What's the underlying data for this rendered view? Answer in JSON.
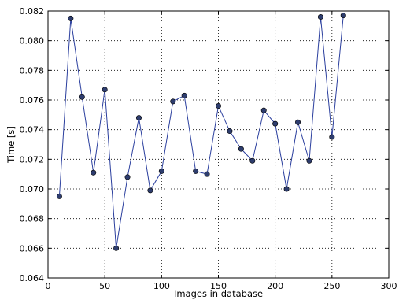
{
  "chart_data": {
    "type": "line",
    "title": "",
    "xlabel": "Images in database",
    "ylabel": "Time [s]",
    "xlim": [
      0,
      300
    ],
    "ylim": [
      0.064,
      0.082
    ],
    "x_ticks": [
      "0",
      "50",
      "100",
      "150",
      "200",
      "250",
      "300"
    ],
    "y_ticks": [
      "0.064",
      "0.066",
      "0.068",
      "0.070",
      "0.072",
      "0.074",
      "0.076",
      "0.078",
      "0.080",
      "0.082"
    ],
    "grid": true,
    "legend": "none",
    "series": [
      {
        "color": "#2b3f9e",
        "marker_color": "#2e3d6e",
        "x": [
          10,
          20,
          30,
          40,
          50,
          60,
          70,
          80,
          90,
          100,
          110,
          120,
          130,
          140,
          150,
          160,
          170,
          180,
          190,
          200,
          210,
          220,
          230,
          240,
          250,
          260
        ],
        "y": [
          0.0695,
          0.0815,
          0.0762,
          0.0711,
          0.0767,
          0.066,
          0.0708,
          0.0748,
          0.0699,
          0.0712,
          0.0759,
          0.0763,
          0.0712,
          0.071,
          0.0756,
          0.0739,
          0.0727,
          0.0719,
          0.0753,
          0.0744,
          0.07,
          0.0745,
          0.0719,
          0.0816,
          0.0735,
          0.0817
        ]
      }
    ]
  }
}
